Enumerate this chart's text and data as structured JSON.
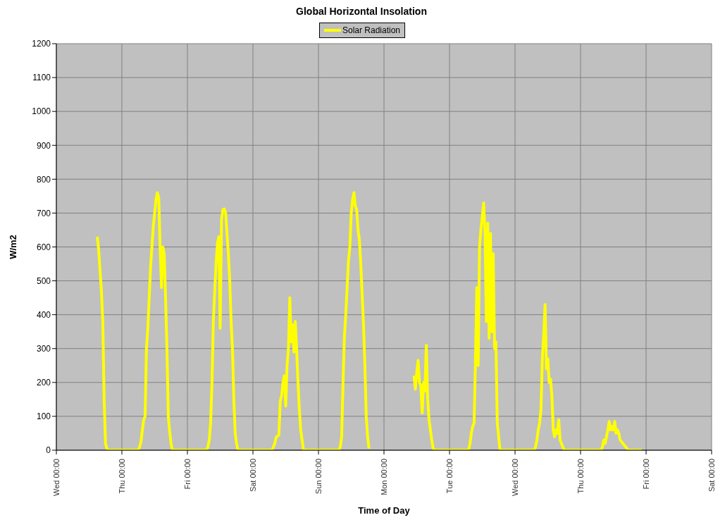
{
  "chart_data": {
    "type": "line",
    "title": "Global Horizontal Insolation",
    "xlabel": "Time of Day",
    "ylabel": "W/m2",
    "legend": "top",
    "grid": true,
    "marker": "none",
    "line_style": "solid",
    "categories": [
      "Wed 00:00",
      null,
      null,
      null,
      null,
      null,
      null,
      null,
      null,
      null,
      null,
      null,
      null,
      null,
      null,
      null,
      null,
      null,
      null,
      null,
      null,
      null,
      null,
      null,
      null,
      null,
      null,
      null,
      null,
      null,
      null,
      null,
      null,
      null,
      null,
      null,
      null,
      null,
      null,
      null,
      null,
      null,
      null,
      null,
      null,
      null,
      null,
      null,
      "Thu 00:00",
      null,
      null,
      null,
      null,
      null,
      null,
      null,
      null,
      null,
      null,
      null,
      null,
      null,
      null,
      null,
      null,
      null,
      null,
      null,
      null,
      null,
      null,
      null,
      null,
      null,
      null,
      null,
      null,
      null,
      null,
      null,
      null,
      null,
      null,
      null,
      null,
      null,
      null,
      null,
      null,
      null,
      null,
      null,
      null,
      null,
      null,
      null,
      "Fri 00:00",
      null,
      null,
      null,
      null,
      null,
      null,
      null,
      null,
      null,
      null,
      null,
      null,
      null,
      null,
      null,
      null,
      null,
      null,
      null,
      null,
      null,
      null,
      null,
      null,
      null,
      null,
      null,
      null,
      null,
      null,
      null,
      null,
      null,
      null,
      null,
      null,
      null,
      null,
      null,
      null,
      null,
      null,
      null,
      null,
      null,
      null,
      null,
      "Sat 00:00",
      null,
      null,
      null,
      null,
      null,
      null,
      null,
      null,
      null,
      null,
      null,
      null,
      null,
      null,
      null,
      null,
      null,
      null,
      null,
      null,
      null,
      null,
      null,
      null,
      null,
      null,
      null,
      null,
      null,
      null,
      null,
      null,
      null,
      null,
      null,
      null,
      null,
      null,
      null,
      null,
      null,
      null,
      null,
      null,
      null,
      null,
      null,
      "Sun 00:00",
      null,
      null,
      null,
      null,
      null,
      null,
      null,
      null,
      null,
      null,
      null,
      null,
      null,
      null,
      null,
      null,
      null,
      null,
      null,
      null,
      null,
      null,
      null,
      null,
      null,
      null,
      null,
      null,
      null,
      null,
      null,
      null,
      null,
      null,
      null,
      null,
      null,
      null,
      null,
      null,
      null,
      null,
      null,
      null,
      null,
      null,
      null,
      "Mon 00:00",
      null,
      null,
      null,
      null,
      null,
      null,
      null,
      null,
      null,
      null,
      null,
      null,
      null,
      null,
      null,
      null,
      null,
      null,
      null,
      null,
      null,
      null,
      null,
      null,
      null,
      null,
      null,
      null,
      null,
      null,
      null,
      null,
      null,
      null,
      null,
      null,
      null,
      null,
      null,
      null,
      null,
      null,
      null,
      null,
      null,
      null,
      null,
      "Tue 00:00",
      null,
      null,
      null,
      null,
      null,
      null,
      null,
      null,
      null,
      null,
      null,
      null,
      null,
      null,
      null,
      null,
      null,
      null,
      null,
      null,
      null,
      null,
      null,
      null,
      null,
      null,
      null,
      null,
      null,
      null,
      null,
      null,
      null,
      null,
      null,
      null,
      null,
      null,
      null,
      null,
      null,
      null,
      null,
      null,
      null,
      null,
      null,
      "Wed 00:00",
      null,
      null,
      null,
      null,
      null,
      null,
      null,
      null,
      null,
      null,
      null,
      null,
      null,
      null,
      null,
      null,
      null,
      null,
      null,
      null,
      null,
      null,
      null,
      null,
      null,
      null,
      null,
      null,
      null,
      null,
      null,
      null,
      null,
      null,
      null,
      null,
      null,
      null,
      null,
      null,
      null,
      null,
      null,
      null,
      null,
      null,
      null,
      "Thu 00:00",
      null,
      null,
      null,
      null,
      null,
      null,
      null,
      null,
      null,
      null,
      null,
      null,
      null,
      null,
      null,
      null,
      null,
      null,
      null,
      null,
      null,
      null,
      null,
      null,
      null,
      null,
      null,
      null,
      null,
      null,
      null,
      null,
      null,
      null,
      null,
      null,
      null,
      null,
      null,
      null,
      null,
      null,
      null,
      null,
      null,
      null,
      null,
      "Fri 00:00",
      null,
      null,
      null,
      null,
      null,
      null,
      null,
      null,
      null,
      null,
      null,
      null,
      null,
      null,
      null,
      null,
      null,
      null,
      null,
      null,
      null,
      null,
      null,
      null,
      null,
      null,
      null,
      null,
      null,
      null,
      null,
      null,
      null,
      null,
      null,
      null,
      null,
      null,
      null,
      null,
      null,
      null,
      null,
      null,
      null,
      null,
      null,
      "Sat 00:00"
    ],
    "ylim": [
      0,
      1200
    ],
    "yticks": [
      0,
      100,
      200,
      300,
      400,
      500,
      600,
      700,
      800,
      900,
      1000,
      1100,
      1200
    ],
    "series": [
      {
        "name": "Solar Radiation",
        "color": "#ffff00",
        "values": [
          null,
          null,
          null,
          null,
          null,
          null,
          null,
          null,
          null,
          null,
          null,
          null,
          null,
          null,
          null,
          null,
          null,
          null,
          null,
          null,
          null,
          null,
          null,
          null,
          null,
          null,
          null,
          null,
          null,
          null,
          630,
          590,
          530,
          470,
          380,
          150,
          20,
          5,
          0,
          0,
          0,
          0,
          0,
          0,
          0,
          0,
          0,
          0,
          0,
          0,
          0,
          0,
          0,
          0,
          0,
          0,
          0,
          0,
          0,
          0,
          0,
          10,
          25,
          60,
          90,
          100,
          300,
          360,
          450,
          540,
          600,
          660,
          700,
          740,
          760,
          745,
          600,
          480,
          600,
          580,
          450,
          300,
          100,
          55,
          20,
          0,
          0,
          0,
          0,
          0,
          0,
          0,
          0,
          0,
          0,
          0,
          0,
          0,
          0,
          0,
          0,
          0,
          0,
          0,
          0,
          0,
          0,
          0,
          0,
          0,
          0,
          10,
          30,
          80,
          200,
          380,
          470,
          550,
          610,
          630,
          360,
          680,
          710,
          712,
          700,
          640,
          580,
          500,
          380,
          300,
          150,
          50,
          20,
          0,
          0,
          0,
          0,
          0,
          0,
          0,
          0,
          0,
          0,
          0,
          0,
          0,
          0,
          0,
          0,
          0,
          0,
          0,
          0,
          0,
          0,
          0,
          0,
          0,
          0,
          10,
          20,
          38,
          42,
          45,
          145,
          160,
          200,
          220,
          130,
          250,
          300,
          450,
          320,
          370,
          290,
          380,
          300,
          200,
          120,
          60,
          30,
          0,
          0,
          0,
          0,
          0,
          0,
          0,
          0,
          0,
          0,
          0,
          0,
          0,
          0,
          0,
          0,
          0,
          0,
          0,
          0,
          0,
          0,
          0,
          0,
          0,
          0,
          0,
          10,
          40,
          200,
          335,
          400,
          480,
          560,
          600,
          700,
          740,
          760,
          720,
          710,
          650,
          620,
          550,
          460,
          370,
          250,
          100,
          40,
          5,
          null,
          null,
          null,
          null,
          null,
          null,
          null,
          null,
          null,
          null,
          null,
          null,
          null,
          null,
          null,
          null,
          null,
          null,
          null,
          null,
          null,
          null,
          null,
          null,
          null,
          null,
          null,
          null,
          null,
          null,
          null,
          null,
          220,
          180,
          230,
          265,
          200,
          190,
          110,
          200,
          175,
          310,
          150,
          90,
          60,
          30,
          5,
          0,
          0,
          0,
          0,
          0,
          0,
          0,
          0,
          0,
          0,
          0,
          0,
          0,
          0,
          0,
          0,
          0,
          0,
          0,
          0,
          0,
          0,
          0,
          0,
          0,
          0,
          20,
          50,
          70,
          80,
          260,
          480,
          250,
          600,
          650,
          690,
          730,
          640,
          380,
          670,
          330,
          640,
          350,
          580,
          300,
          320,
          80,
          40,
          0,
          0,
          0,
          0,
          0,
          0,
          0,
          0,
          0,
          0,
          0,
          0,
          0,
          0,
          0,
          0,
          0,
          0,
          0,
          0,
          0,
          0,
          0,
          0,
          0,
          0,
          10,
          30,
          60,
          80,
          120,
          270,
          340,
          430,
          240,
          270,
          200,
          210,
          160,
          60,
          40,
          60,
          50,
          90,
          30,
          20,
          10,
          0,
          0,
          0,
          0,
          0,
          0,
          0,
          0,
          0,
          0,
          0,
          0,
          0,
          0,
          0,
          0,
          0,
          0,
          0,
          0,
          0,
          0,
          0,
          0,
          0,
          0,
          0,
          0,
          10,
          30,
          20,
          40,
          60,
          85,
          60,
          70,
          60,
          85,
          50,
          60,
          50,
          30,
          25,
          20,
          15,
          10,
          5,
          0,
          0,
          0,
          0,
          0,
          0,
          0,
          0,
          0,
          0,
          0,
          null,
          null,
          null,
          null,
          null,
          null,
          null,
          null,
          null,
          null,
          null,
          null,
          null,
          null,
          null,
          null,
          null,
          null,
          null,
          null,
          null,
          null,
          null,
          null,
          null,
          null,
          null,
          null,
          null,
          null,
          null,
          null,
          null,
          null,
          null,
          null,
          null,
          null,
          null,
          null,
          null,
          null,
          null,
          null,
          null,
          null,
          null,
          null,
          null,
          null,
          null
        ]
      }
    ]
  }
}
